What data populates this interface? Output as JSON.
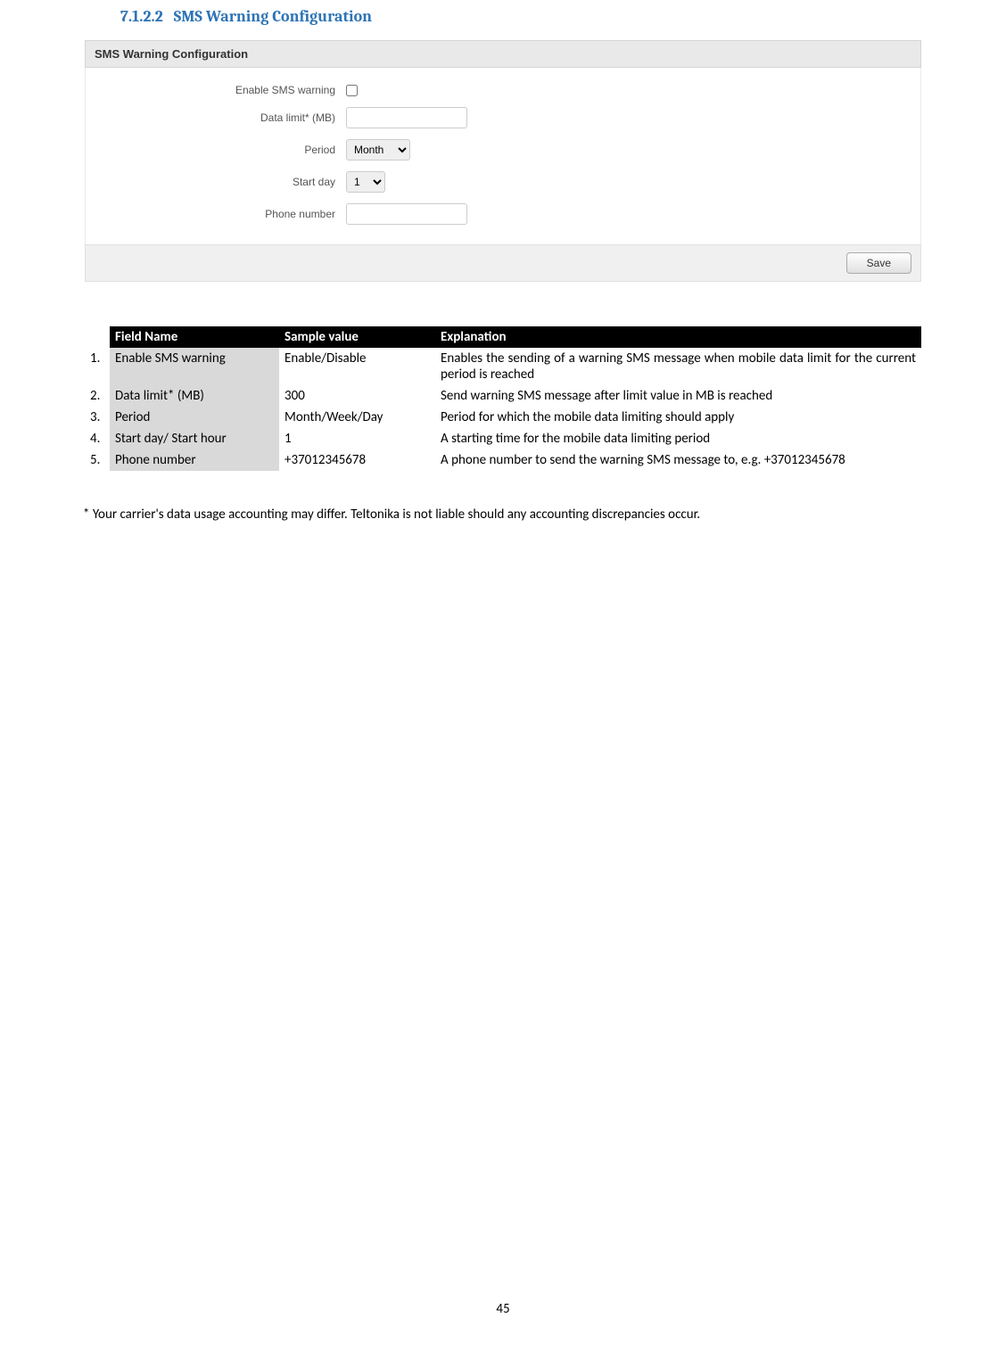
{
  "heading": {
    "number": "7.1.2.2",
    "title": "SMS Warning Configuration"
  },
  "panel": {
    "title": "SMS Warning Configuration",
    "fields": {
      "enable_label": "Enable SMS warning",
      "enable_checked": false,
      "data_limit_label": "Data limit* (MB)",
      "data_limit_value": "",
      "period_label": "Period",
      "period_selected": "Month",
      "start_day_label": "Start day",
      "start_day_selected": "1",
      "phone_label": "Phone number",
      "phone_value": ""
    },
    "save_button_label": "Save"
  },
  "table": {
    "headers": {
      "col1": "",
      "col2": "Field Name",
      "col3": "Sample value",
      "col4": "Explanation"
    },
    "rows": [
      {
        "num": "1.",
        "field": "Enable SMS warning",
        "sample": "Enable/Disable",
        "explain": "Enables the sending of a warning SMS message when mobile data limit for the current period is reached"
      },
      {
        "num": "2.",
        "field": "Data limit* (MB)",
        "sample": "300",
        "explain": "Send warning SMS message after limit value in MB is reached"
      },
      {
        "num": "3.",
        "field": "Period",
        "sample": "Month/Week/Day",
        "explain": "Period for which the mobile data limiting should apply"
      },
      {
        "num": "4.",
        "field": "Start day/ Start hour",
        "sample": "1",
        "explain": "A starting time for the mobile data limiting period"
      },
      {
        "num": "5.",
        "field": "Phone number",
        "sample": "+37012345678",
        "explain": "A phone number to send the warning SMS message to, e.g. +37012345678"
      }
    ]
  },
  "footnote": "* Your carrier's data usage accounting may differ. Teltonika is not liable should any accounting discrepancies occur.",
  "page_number": "45",
  "colors": {
    "heading_color": "#2e74b5",
    "table_header_bg": "#000000",
    "table_header_fg": "#ffffff",
    "table_fieldname_bg": "#d9d9d9",
    "panel_header_bg": "#e9e9e9",
    "panel_footer_bg": "#f0f0f0"
  }
}
